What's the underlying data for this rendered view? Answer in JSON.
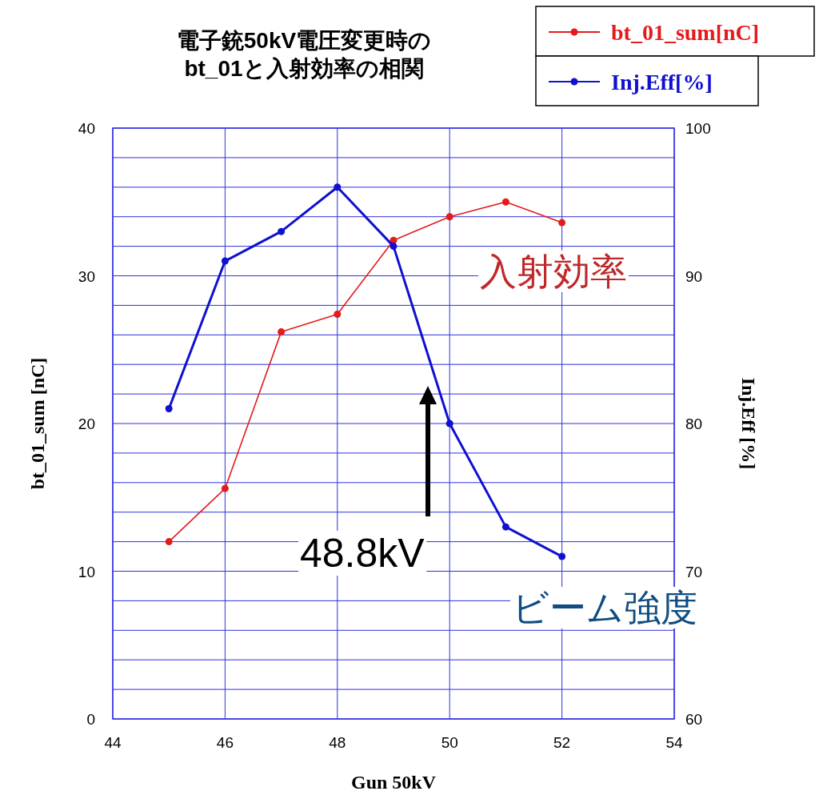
{
  "chart_data": {
    "type": "line",
    "title": "電子銃50kV電圧変更時の\nbt_01と入射効率の相関",
    "xlabel": "Gun 50kV",
    "ylabel": "bt_01_sum [nC]",
    "y2label": "Inj.Eff [%]",
    "x": [
      45,
      46,
      47,
      48,
      49,
      50,
      51,
      52
    ],
    "series": [
      {
        "name": "bt_01_sum[nC]",
        "color": "#e41a1c",
        "values": [
          12,
          15.6,
          26.2,
          27.4,
          32.4,
          34.0,
          35.0,
          33.6
        ]
      },
      {
        "name": "Inj.Eff[%]",
        "color": "#1010d0",
        "axis": "y2",
        "values": [
          81,
          91,
          93,
          96,
          92,
          80,
          73,
          71
        ]
      }
    ],
    "xlim": [
      44,
      54
    ],
    "xticks": [
      44,
      46,
      48,
      50,
      52,
      54
    ],
    "ylim": [
      0,
      40
    ],
    "yticks": [
      0,
      {
        "value": 2,
        "label": null
      },
      {
        "value": 4,
        "label": null
      },
      {
        "value": 6,
        "label": null
      },
      {
        "value": 8,
        "label": null
      },
      10,
      {
        "value": 12,
        "label": null
      },
      {
        "value": 14,
        "label": null
      },
      {
        "value": 16,
        "label": null
      },
      {
        "value": 18,
        "label": null
      },
      20,
      {
        "value": 22,
        "label": null
      },
      {
        "value": 24,
        "label": null
      },
      {
        "value": 26,
        "label": null
      },
      {
        "value": 28,
        "label": null
      },
      30,
      {
        "value": 32,
        "label": null
      },
      {
        "value": 34,
        "label": null
      },
      {
        "value": 36,
        "label": null
      },
      {
        "value": 38,
        "label": null
      },
      40
    ],
    "y2lim": [
      60,
      100
    ],
    "y2ticks": [
      60,
      70,
      80,
      90,
      100
    ],
    "grid": true,
    "legend": "top right",
    "marker": "circle",
    "annotations": [
      "48.8kV",
      "入射効率",
      "ビーム強度"
    ]
  }
}
